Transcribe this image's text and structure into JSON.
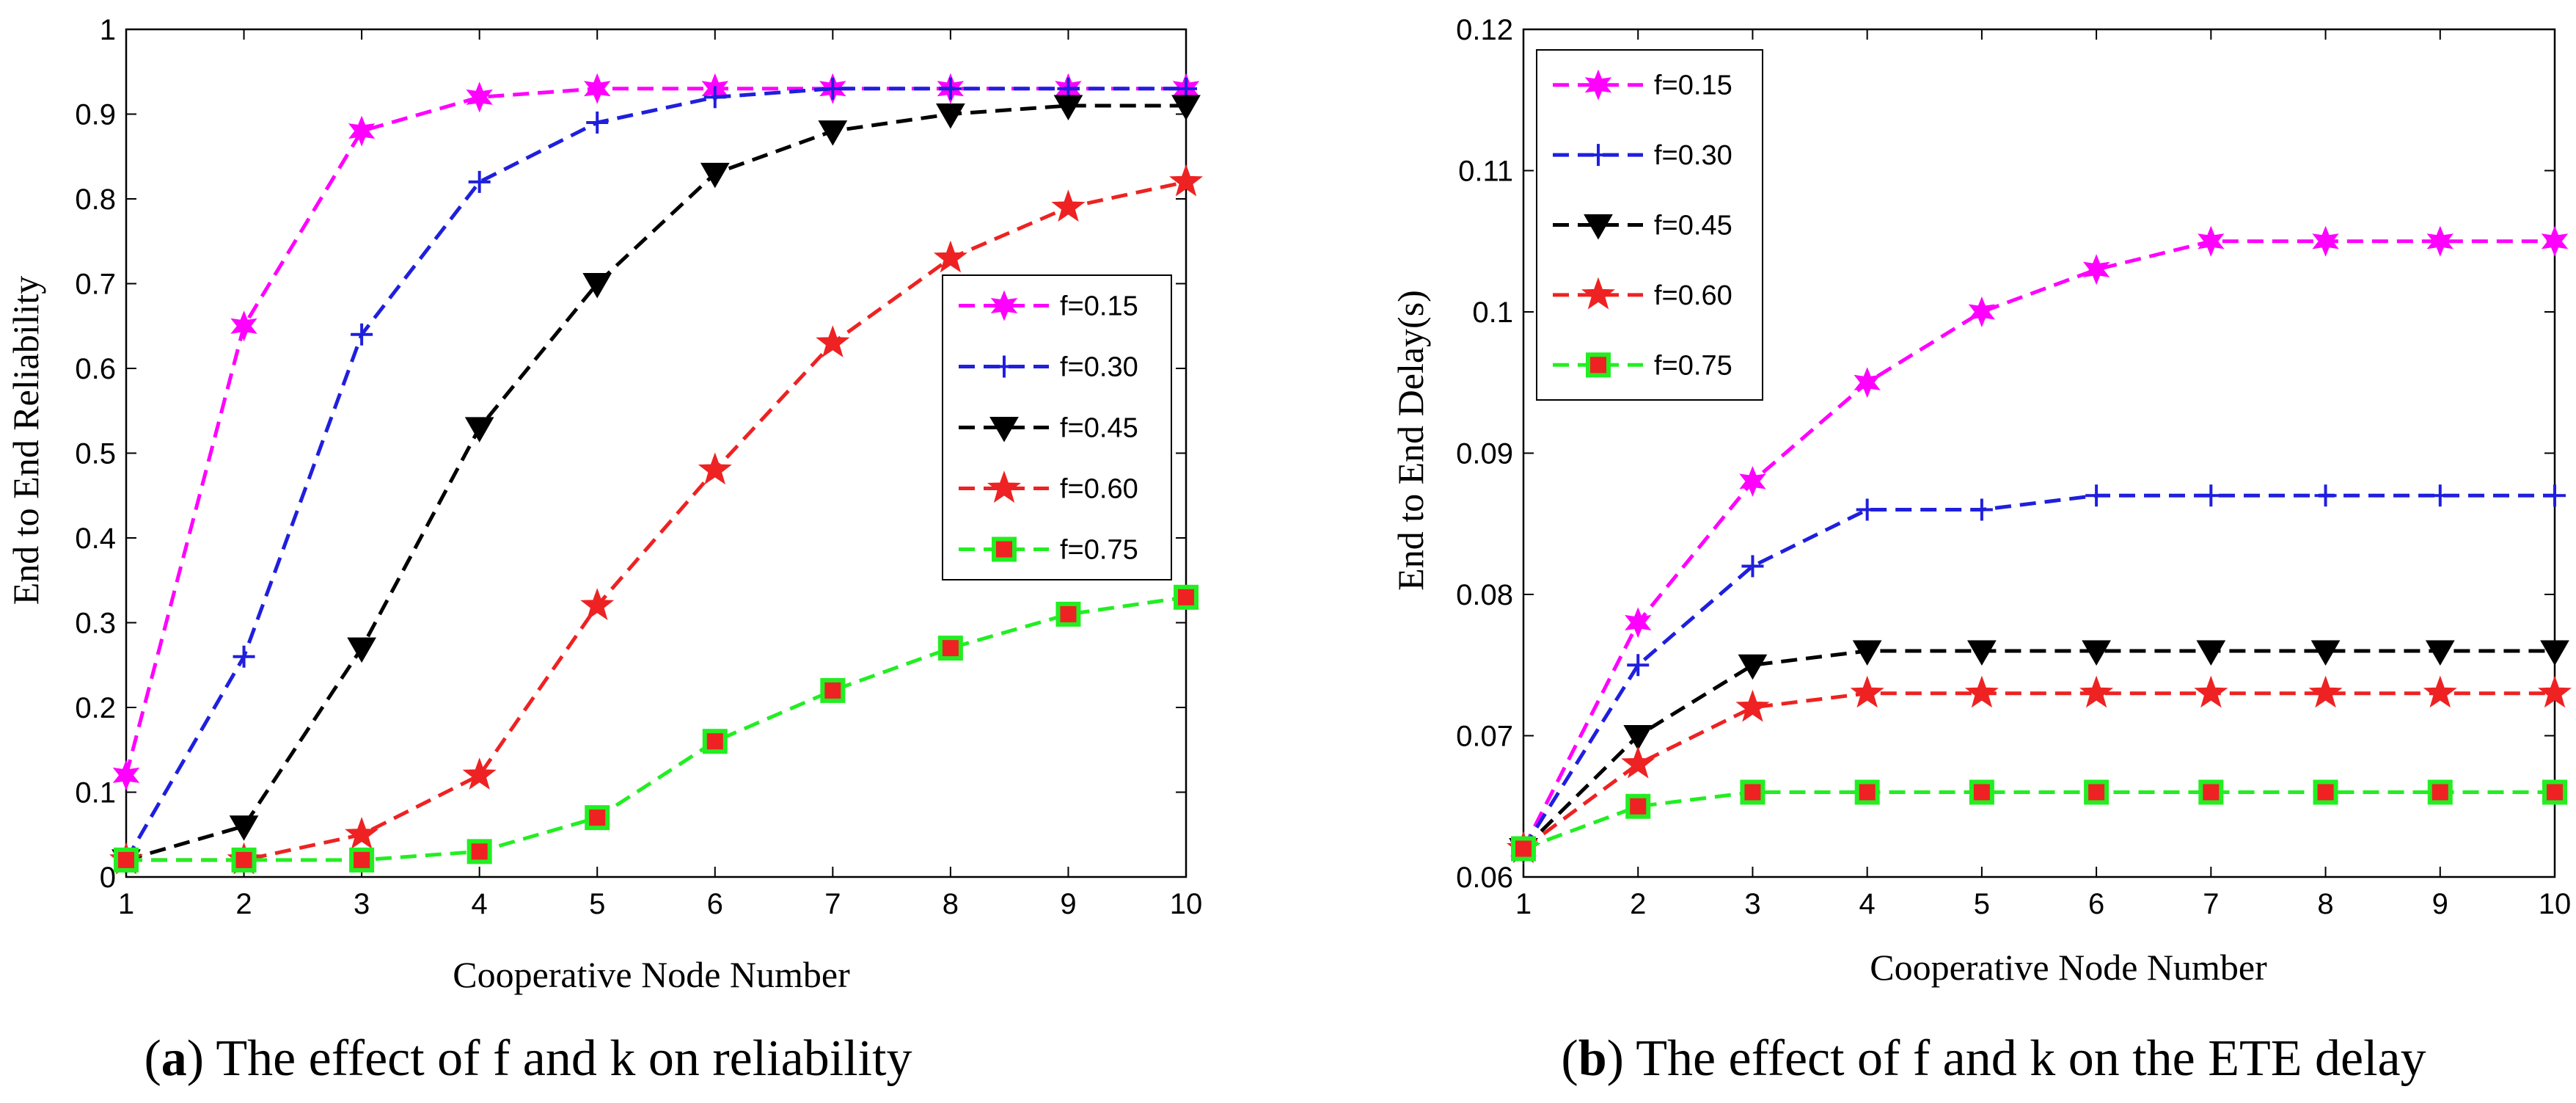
{
  "chart_data": [
    {
      "type": "line",
      "caption_letter": "a",
      "caption_text": "The effect of f and k on reliability",
      "xlabel": "Cooperative Node Number",
      "ylabel": "End to End Reliability",
      "x": [
        1,
        2,
        3,
        4,
        5,
        6,
        7,
        8,
        9,
        10
      ],
      "xlim": [
        1,
        10
      ],
      "ylim": [
        0,
        1
      ],
      "xticks": [
        1,
        2,
        3,
        4,
        5,
        6,
        7,
        8,
        9,
        10
      ],
      "yticks": [
        0,
        0.1,
        0.2,
        0.3,
        0.4,
        0.5,
        0.6,
        0.7,
        0.8,
        0.9,
        1
      ],
      "ytick_labels": [
        "0",
        "0.1",
        "0.2",
        "0.3",
        "0.4",
        "0.5",
        "0.6",
        "0.7",
        "0.8",
        "0.9",
        "1"
      ],
      "legend_position": "right-middle",
      "series": [
        {
          "name": "f=0.15",
          "color": "#ff00ff",
          "marker": "hexstar",
          "values": [
            0.12,
            0.65,
            0.88,
            0.92,
            0.93,
            0.93,
            0.93,
            0.93,
            0.93,
            0.93
          ]
        },
        {
          "name": "f=0.30",
          "color": "#1f1fdd",
          "marker": "plus",
          "values": [
            0.02,
            0.26,
            0.64,
            0.82,
            0.89,
            0.92,
            0.93,
            0.93,
            0.93,
            0.93
          ]
        },
        {
          "name": "f=0.45",
          "color": "#000000",
          "marker": "triangle-down",
          "values": [
            0.02,
            0.06,
            0.27,
            0.53,
            0.7,
            0.83,
            0.88,
            0.9,
            0.91,
            0.91
          ]
        },
        {
          "name": "f=0.60",
          "color": "#ee2222",
          "marker": "star",
          "values": [
            0.02,
            0.02,
            0.05,
            0.12,
            0.32,
            0.48,
            0.63,
            0.73,
            0.79,
            0.82
          ]
        },
        {
          "name": "f=0.75",
          "color": "#22ee22",
          "marker": "square",
          "values": [
            0.02,
            0.02,
            0.02,
            0.03,
            0.07,
            0.16,
            0.22,
            0.27,
            0.31,
            0.33
          ]
        }
      ]
    },
    {
      "type": "line",
      "caption_letter": "b",
      "caption_text": "The effect of f and k on the ETE delay",
      "xlabel": "Cooperative Node Number",
      "ylabel": "End to End Delay(s)",
      "x": [
        1,
        2,
        3,
        4,
        5,
        6,
        7,
        8,
        9,
        10
      ],
      "xlim": [
        1,
        10
      ],
      "ylim": [
        0.06,
        0.12
      ],
      "xticks": [
        1,
        2,
        3,
        4,
        5,
        6,
        7,
        8,
        9,
        10
      ],
      "yticks": [
        0.06,
        0.07,
        0.08,
        0.09,
        0.1,
        0.11,
        0.12
      ],
      "ytick_labels": [
        "0.06",
        "0.07",
        "0.08",
        "0.09",
        "0.1",
        "0.11",
        "0.12"
      ],
      "legend_position": "top-left",
      "series": [
        {
          "name": "f=0.15",
          "color": "#ff00ff",
          "marker": "hexstar",
          "values": [
            0.062,
            0.078,
            0.088,
            0.095,
            0.1,
            0.103,
            0.105,
            0.105,
            0.105,
            0.105
          ]
        },
        {
          "name": "f=0.30",
          "color": "#1f1fdd",
          "marker": "plus",
          "values": [
            0.062,
            0.075,
            0.082,
            0.086,
            0.086,
            0.087,
            0.087,
            0.087,
            0.087,
            0.087
          ]
        },
        {
          "name": "f=0.45",
          "color": "#000000",
          "marker": "triangle-down",
          "values": [
            0.062,
            0.07,
            0.075,
            0.076,
            0.076,
            0.076,
            0.076,
            0.076,
            0.076,
            0.076
          ]
        },
        {
          "name": "f=0.60",
          "color": "#ee2222",
          "marker": "star",
          "values": [
            0.062,
            0.068,
            0.072,
            0.073,
            0.073,
            0.073,
            0.073,
            0.073,
            0.073,
            0.073
          ]
        },
        {
          "name": "f=0.75",
          "color": "#22ee22",
          "marker": "square",
          "values": [
            0.062,
            0.065,
            0.066,
            0.066,
            0.066,
            0.066,
            0.066,
            0.066,
            0.066,
            0.066
          ]
        }
      ]
    }
  ]
}
